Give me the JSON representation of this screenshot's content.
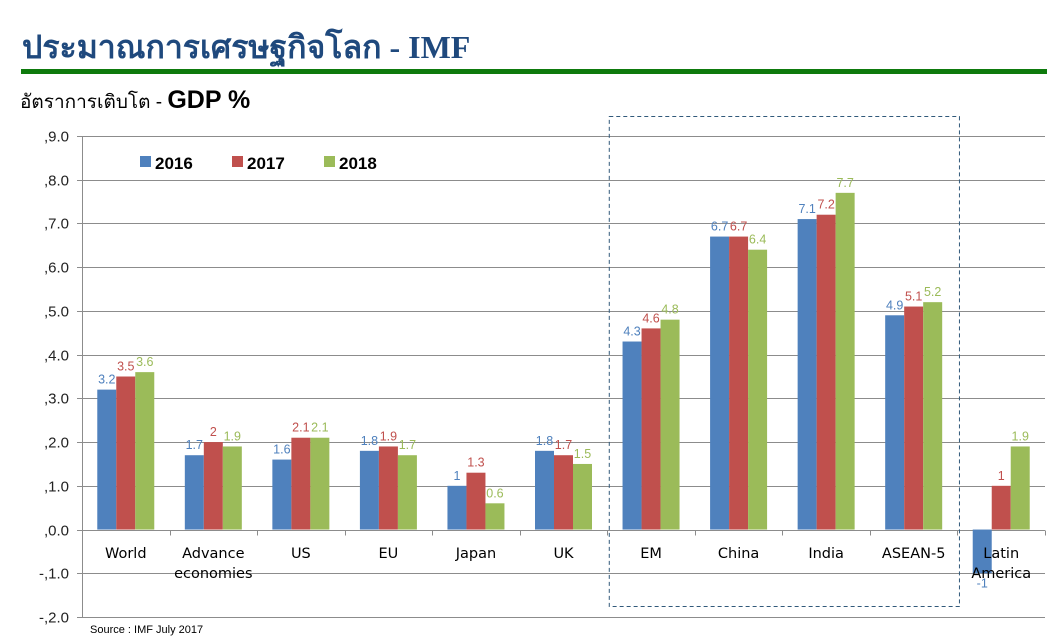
{
  "header": {
    "title": "ประมาณการเศรษฐกิจโลก - IMF",
    "subtitle_thai": "อัตราการเติบโต - ",
    "subtitle_metric": "GDP %"
  },
  "footer": {
    "source": "Source : IMF July 2017"
  },
  "colors": {
    "title": "#1f497d",
    "rule": "#0e7a0d",
    "highlight_box": "#31597a"
  },
  "chart_data": {
    "type": "bar",
    "title": "อัตราการเติบโต - GDP %",
    "xlabel": "",
    "ylabel": "",
    "ylim": [
      -2,
      9
    ],
    "yticks": [
      -2,
      -1,
      0,
      1,
      2,
      3,
      4,
      5,
      6,
      7,
      8,
      9
    ],
    "ytick_labels": [
      "-,2.0",
      "-,1.0",
      ",0.0",
      ",1.0",
      ",2.0",
      ",3.0",
      ",4.0",
      ",5.0",
      ",6.0",
      ",7.0",
      ",8.0",
      ",9.0"
    ],
    "grid": true,
    "legend_position": "top-left",
    "categories": [
      "World",
      "Advance economies",
      "US",
      "EU",
      "Japan",
      "UK",
      "EM",
      "China",
      "India",
      "ASEAN-5",
      "Latin America"
    ],
    "category_lines": [
      [
        "World"
      ],
      [
        "Advance",
        "economies"
      ],
      [
        "US"
      ],
      [
        "EU"
      ],
      [
        "Japan"
      ],
      [
        "UK"
      ],
      [
        "EM"
      ],
      [
        "China"
      ],
      [
        "India"
      ],
      [
        "ASEAN-5"
      ],
      [
        "Latin",
        "America"
      ]
    ],
    "series": [
      {
        "name": "2016",
        "color": "#4f81bd",
        "label_color": "#4f81bd",
        "values": [
          3.2,
          1.7,
          1.6,
          1.8,
          1,
          1.8,
          4.3,
          6.7,
          7.1,
          4.9,
          -1
        ],
        "labels": [
          "3.2",
          "1.7",
          "1.6",
          "1.8",
          "1",
          "1.8",
          "4.3",
          "6.7",
          "7.1",
          "4.9",
          "-1"
        ]
      },
      {
        "name": "2017",
        "color": "#c0504d",
        "label_color": "#c0504d",
        "values": [
          3.5,
          2,
          2.1,
          1.9,
          1.3,
          1.7,
          4.6,
          6.7,
          7.2,
          5.1,
          1
        ],
        "labels": [
          "3.5",
          "2",
          "2.1",
          "1.9",
          "1.3",
          "1.7",
          "4.6",
          "6.7",
          "7.2",
          "5.1",
          "1"
        ]
      },
      {
        "name": "2018",
        "color": "#9bbb59",
        "label_color": "#9bbb59",
        "values": [
          3.6,
          1.9,
          2.1,
          1.7,
          0.6,
          1.5,
          4.8,
          6.4,
          7.7,
          5.2,
          1.9
        ],
        "labels": [
          "3.6",
          "1.9",
          "2.1",
          "1.7",
          "0.6",
          "1.5",
          "4.8",
          "6.4",
          "7.7",
          "5.2",
          "1.9"
        ]
      }
    ],
    "highlight_group": [
      "EM",
      "China",
      "India",
      "ASEAN-5"
    ]
  }
}
